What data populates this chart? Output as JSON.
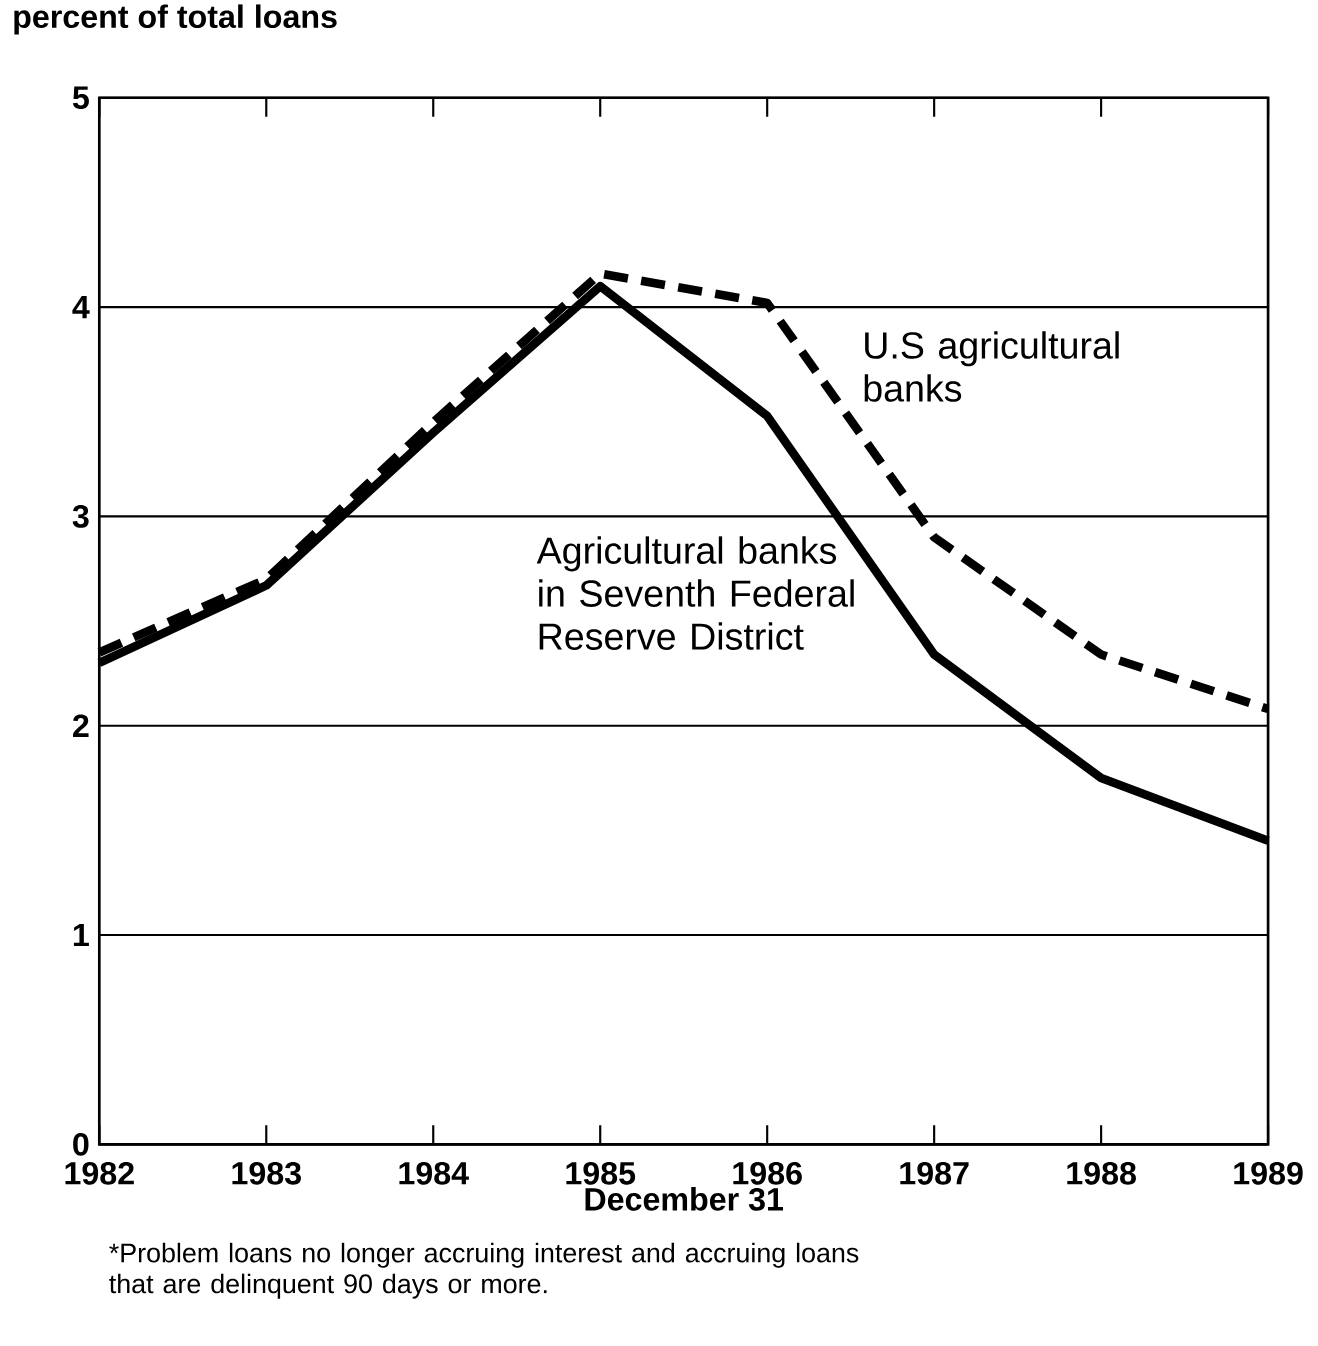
{
  "chart_data": {
    "type": "line",
    "ylabel": "percent of total loans",
    "xlabel": "December 31",
    "annotations": [
      "*Problem loans no longer accruing interest and accruing loans that are delinquent 90 days or more."
    ],
    "x": [
      1982,
      1983,
      1984,
      1985,
      1986,
      1987,
      1988,
      1989
    ],
    "series": [
      {
        "name": "Agricultural banks in Seventh Federal Reserve District",
        "color": "#000000",
        "line_style": "solid",
        "values": [
          2.3,
          2.67,
          3.4,
          4.1,
          3.48,
          2.34,
          1.75,
          1.45
        ]
      },
      {
        "name": "U.S agricultural banks",
        "color": "#000000",
        "line_style": "dashed",
        "values": [
          2.35,
          2.7,
          3.45,
          4.16,
          4.02,
          2.9,
          2.34,
          2.08
        ]
      }
    ],
    "xlim": [
      1982,
      1989
    ],
    "ylim": [
      0,
      5
    ],
    "xticks": [
      1982,
      1983,
      1984,
      1985,
      1986,
      1987,
      1988,
      1989
    ],
    "yticks": [
      0,
      1,
      2,
      3,
      4,
      5
    ],
    "grid": "y",
    "legend": false,
    "marker": "none"
  }
}
